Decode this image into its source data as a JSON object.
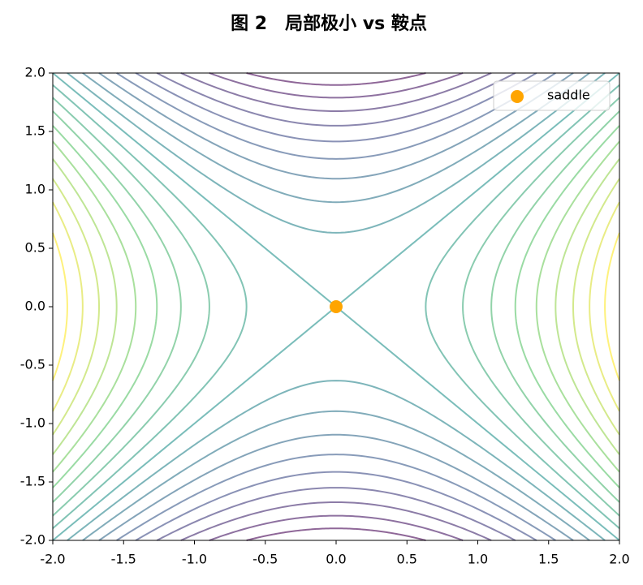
{
  "chart_data": {
    "type": "contour",
    "title": "图 2　局部极小 vs 鞍点",
    "levels": [
      -3.6,
      -3.2,
      -2.8,
      -2.4,
      -2.0,
      -1.6,
      -1.2,
      -0.8,
      -0.4,
      0,
      0.4,
      0.8,
      1.2,
      1.6,
      2.0,
      2.4,
      2.8,
      3.2,
      3.6
    ],
    "colormap": "viridis",
    "points": {
      "name": "saddle",
      "x": [
        0
      ],
      "y": [
        0
      ],
      "color": "orange"
    },
    "legend": "upper right",
    "xlim": [
      -2.0,
      2.0
    ],
    "ylim": [
      -2.0,
      2.0
    ],
    "xticks": [
      {
        "value": -2,
        "label": "-2.0"
      },
      {
        "value": -1.5,
        "label": "-1.5"
      },
      {
        "value": -1,
        "label": "-1.0"
      },
      {
        "value": -0.5,
        "label": "-0.5"
      },
      {
        "value": 0,
        "label": "0.0"
      },
      {
        "value": 0.5,
        "label": "0.5"
      },
      {
        "value": 1,
        "label": "1.0"
      },
      {
        "value": 1.5,
        "label": "1.5"
      },
      {
        "value": 2,
        "label": "2.0"
      }
    ],
    "yticks": [
      {
        "value": -2,
        "label": "-2.0"
      },
      {
        "value": -1.5,
        "label": "-1.5"
      },
      {
        "value": -1,
        "label": "-1.0"
      },
      {
        "value": -0.5,
        "label": "-0.5"
      },
      {
        "value": 0,
        "label": "0.0"
      },
      {
        "value": 0.5,
        "label": "0.5"
      },
      {
        "value": 1,
        "label": "1.0"
      },
      {
        "value": 1.5,
        "label": "1.5"
      },
      {
        "value": 2,
        "label": "2.0"
      }
    ]
  }
}
